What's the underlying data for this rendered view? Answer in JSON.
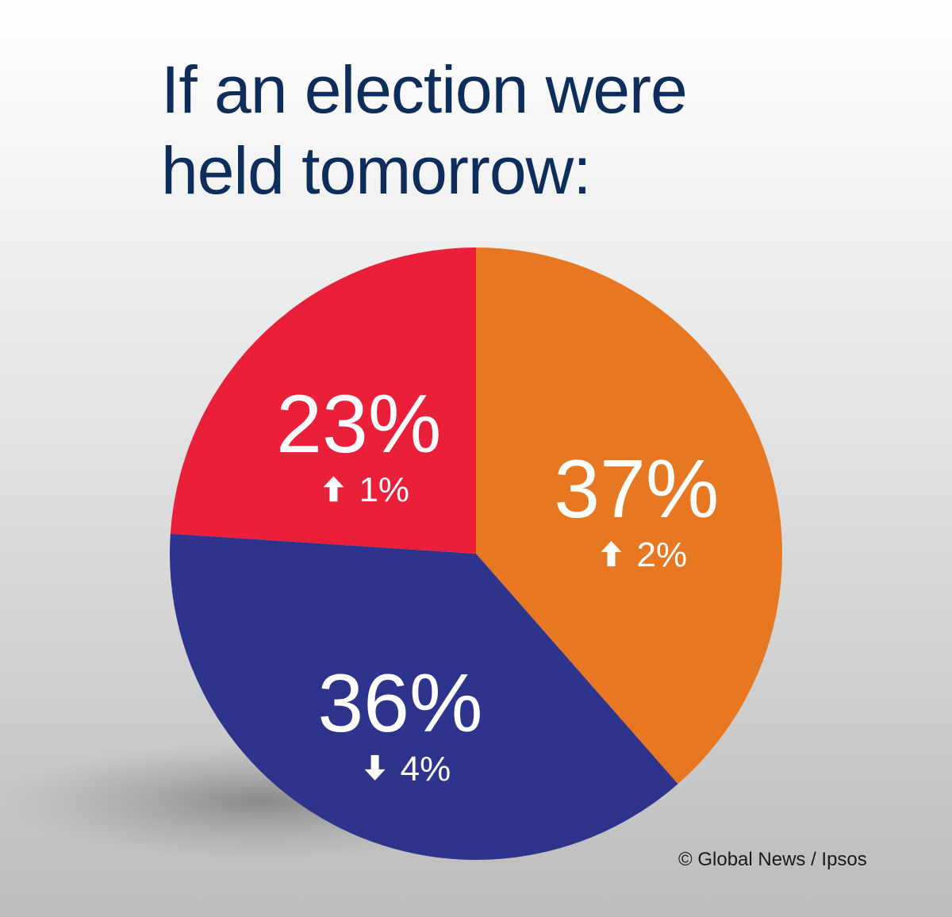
{
  "chart_data": {
    "type": "pie",
    "title": "If an election were held tomorrow:",
    "categories": [
      null,
      null,
      null
    ],
    "values": [
      37,
      36,
      23
    ],
    "value_labels": [
      "37%",
      "36%",
      "23%"
    ],
    "changes": [
      2,
      -4,
      1
    ],
    "change_labels": [
      "2%",
      "4%",
      "1%"
    ],
    "colors": [
      "#e87722",
      "#2e338b",
      "#ea1f3a"
    ],
    "source": "© Global News / Ipsos"
  }
}
